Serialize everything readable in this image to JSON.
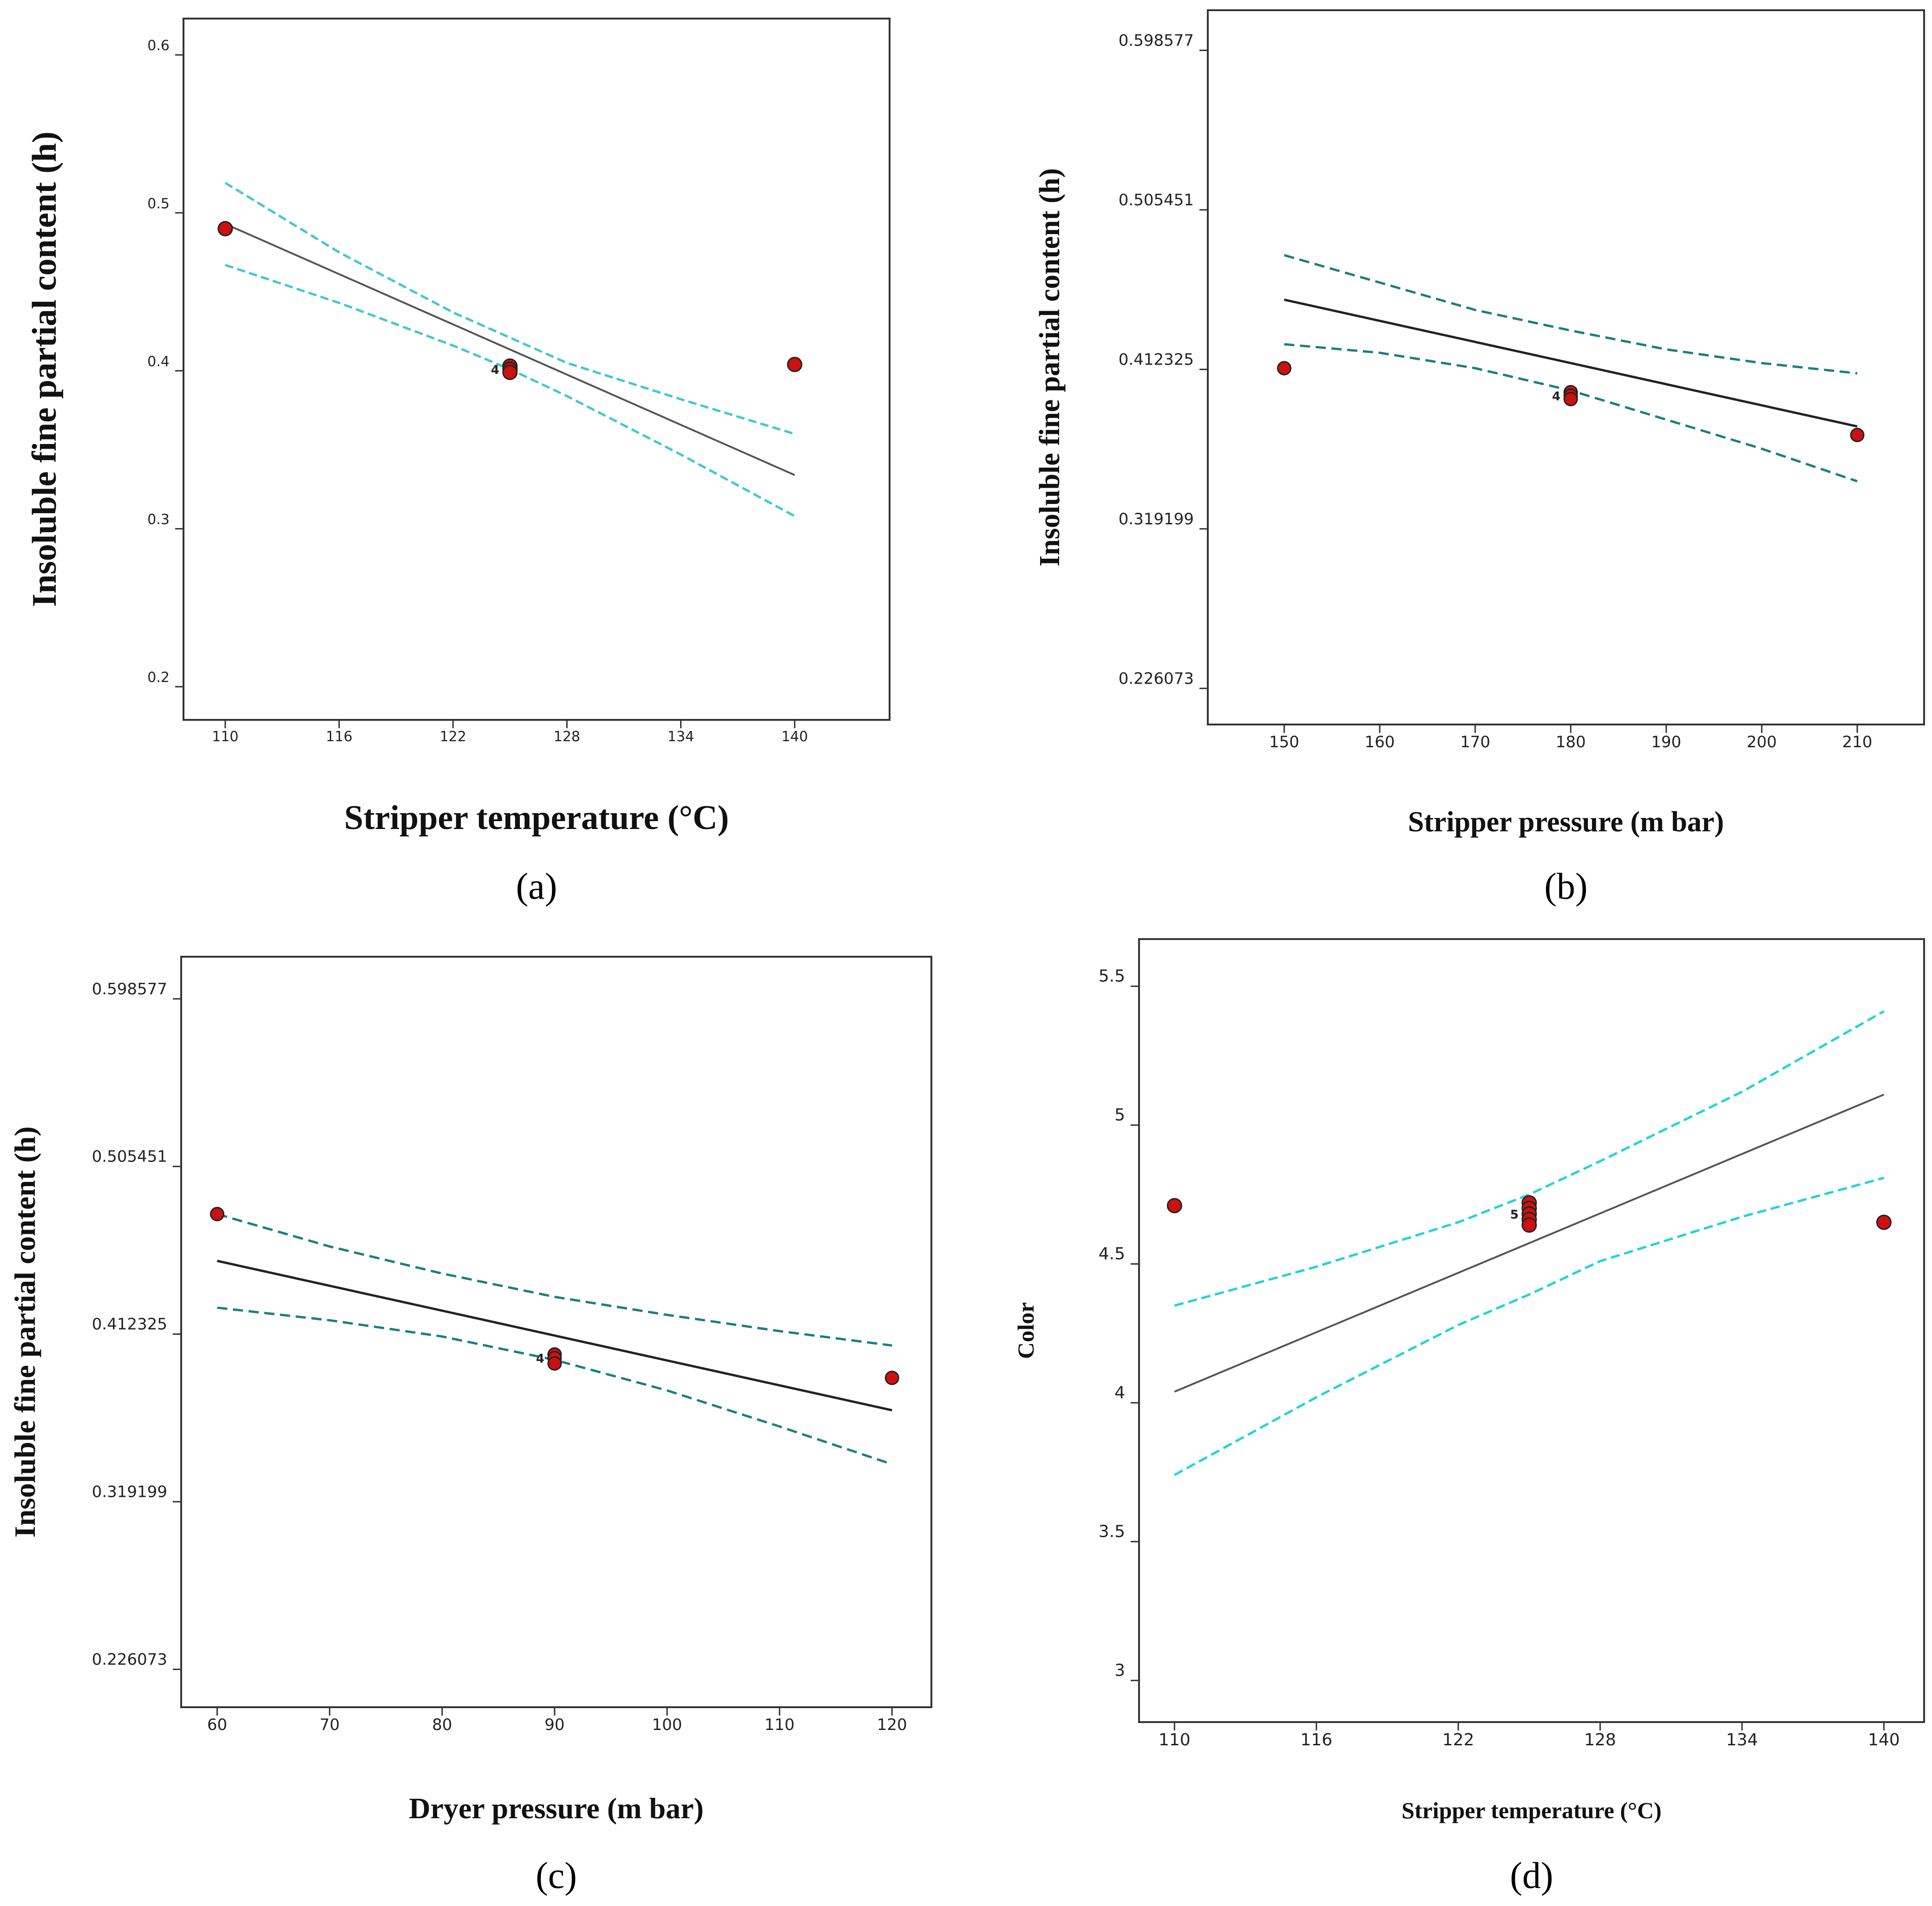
{
  "chart_data": [
    {
      "type": "scatter",
      "caption": "(a)",
      "caption_letter": "a",
      "xlabel": "Stripper temperature (°C)",
      "ylabel": "Insoluble fine partial content (h)",
      "xlim": [
        107.8,
        145.0
      ],
      "ylim": [
        0.179,
        0.623
      ],
      "xticks": [
        110,
        116,
        122,
        128,
        134,
        140
      ],
      "xtick_labels": [
        "110",
        "116",
        "122",
        "128",
        "134",
        "140"
      ],
      "yticks": [
        0.2,
        0.3,
        0.4,
        0.5,
        0.6
      ],
      "ytick_labels": [
        "0.2",
        "0.3",
        "0.4",
        "0.5",
        "0.6"
      ],
      "fit": {
        "x": [
          110,
          140
        ],
        "y": [
          0.493,
          0.334
        ]
      },
      "ci_upper": {
        "x": [
          110,
          116,
          122,
          125,
          128,
          134,
          140
        ],
        "y": [
          0.519,
          0.475,
          0.437,
          0.421,
          0.405,
          0.382,
          0.36
        ]
      },
      "ci_lower": {
        "x": [
          110,
          116,
          122,
          125,
          128,
          134,
          140
        ],
        "y": [
          0.467,
          0.443,
          0.416,
          0.401,
          0.384,
          0.347,
          0.308
        ]
      },
      "points": {
        "x": [
          110,
          125,
          125,
          125,
          140
        ],
        "y": [
          0.49,
          0.403,
          0.401,
          0.399,
          0.404
        ]
      },
      "replicate_label": "4",
      "colors": {
        "fit": "#555555",
        "ci": "#40c8d0",
        "point_fill": "#cc1111",
        "point_edge": "#222222"
      }
    },
    {
      "type": "scatter",
      "caption": "(b)",
      "caption_letter": "b",
      "xlabel": "Stripper pressure (m bar)",
      "ylabel": "Insoluble fine partial content (h)",
      "xlim": [
        142.0,
        217.0
      ],
      "ylim": [
        0.205,
        0.622
      ],
      "xticks": [
        150,
        160,
        170,
        180,
        190,
        200,
        210
      ],
      "xtick_labels": [
        "150",
        "160",
        "170",
        "180",
        "190",
        "200",
        "210"
      ],
      "yticks": [
        0.226073,
        0.319199,
        0.412325,
        0.505451,
        0.598577
      ],
      "ytick_labels": [
        "0.226073",
        "0.319199",
        "0.412325",
        "0.505451",
        "0.598577"
      ],
      "fit": {
        "x": [
          150,
          210
        ],
        "y": [
          0.453,
          0.379
        ]
      },
      "ci_upper": {
        "x": [
          150,
          160,
          170,
          180,
          190,
          200,
          210
        ],
        "y": [
          0.479,
          0.463,
          0.447,
          0.435,
          0.424,
          0.416,
          0.41
        ]
      },
      "ci_lower": {
        "x": [
          150,
          160,
          170,
          180,
          190,
          200,
          210
        ],
        "y": [
          0.427,
          0.422,
          0.413,
          0.4,
          0.383,
          0.366,
          0.347
        ]
      },
      "points": {
        "x": [
          150,
          180,
          180,
          180,
          210
        ],
        "y": [
          0.413,
          0.399,
          0.397,
          0.395,
          0.374
        ]
      },
      "replicate_label": "4",
      "colors": {
        "fit": "#222222",
        "ci": "#1a7f80",
        "point_fill": "#cc1111",
        "point_edge": "#222222"
      }
    },
    {
      "type": "scatter",
      "caption": "(c)",
      "caption_letter": "c",
      "xlabel": "Dryer pressure (m bar)",
      "ylabel": "Insoluble fine partial content (h)",
      "xlim": [
        56.8,
        123.5
      ],
      "ylim": [
        0.205,
        0.622
      ],
      "xticks": [
        60,
        70,
        80,
        90,
        100,
        110,
        120
      ],
      "xtick_labels": [
        "60",
        "70",
        "80",
        "90",
        "100",
        "110",
        "120"
      ],
      "yticks": [
        0.226073,
        0.319199,
        0.412325,
        0.505451,
        0.598577
      ],
      "ytick_labels": [
        "0.226073",
        "0.319199",
        "0.412325",
        "0.505451",
        "0.598577"
      ],
      "fit": {
        "x": [
          60,
          120
        ],
        "y": [
          0.453,
          0.37
        ]
      },
      "ci_upper": {
        "x": [
          60,
          70,
          80,
          90,
          100,
          110,
          120
        ],
        "y": [
          0.479,
          0.461,
          0.446,
          0.433,
          0.423,
          0.414,
          0.406
        ]
      },
      "ci_lower": {
        "x": [
          60,
          70,
          80,
          90,
          100,
          110,
          120
        ],
        "y": [
          0.427,
          0.42,
          0.411,
          0.398,
          0.381,
          0.361,
          0.34
        ]
      },
      "points": {
        "x": [
          60,
          90,
          90,
          90,
          120
        ],
        "y": [
          0.479,
          0.401,
          0.399,
          0.396,
          0.388
        ]
      },
      "replicate_label": "4",
      "colors": {
        "fit": "#222222",
        "ci": "#1a7f80",
        "point_fill": "#cc1111",
        "point_edge": "#222222"
      }
    },
    {
      "type": "scatter",
      "caption": "(d)",
      "caption_letter": "d",
      "xlabel": "Stripper temperature (°C)",
      "ylabel": "Color",
      "xlim": [
        108.5,
        141.7
      ],
      "ylim": [
        2.85,
        5.67
      ],
      "xticks": [
        110,
        116,
        122,
        128,
        134,
        140
      ],
      "xtick_labels": [
        "110",
        "116",
        "122",
        "128",
        "134",
        "140"
      ],
      "yticks": [
        3,
        3.5,
        4,
        4.5,
        5,
        5.5
      ],
      "ytick_labels": [
        "3",
        "3.5",
        "4",
        "4.5",
        "5",
        "5.5"
      ],
      "fit": {
        "x": [
          110,
          140
        ],
        "y": [
          4.04,
          5.11
        ]
      },
      "ci_upper": {
        "x": [
          110,
          116,
          122,
          125,
          128,
          134,
          140
        ],
        "y": [
          4.35,
          4.49,
          4.65,
          4.75,
          4.87,
          5.12,
          5.41
        ]
      },
      "ci_lower": {
        "x": [
          110,
          116,
          122,
          125,
          128,
          134,
          140
        ],
        "y": [
          3.74,
          4.02,
          4.28,
          4.39,
          4.51,
          4.67,
          4.81
        ]
      },
      "points": {
        "x": [
          110,
          125,
          125,
          125,
          125,
          125,
          140
        ],
        "y": [
          4.71,
          4.72,
          4.7,
          4.68,
          4.66,
          4.64,
          4.65
        ]
      },
      "replicate_label": "5",
      "colors": {
        "fit": "#555555",
        "ci": "#22d3d8",
        "point_fill": "#cc1111",
        "point_edge": "#222222"
      }
    }
  ]
}
